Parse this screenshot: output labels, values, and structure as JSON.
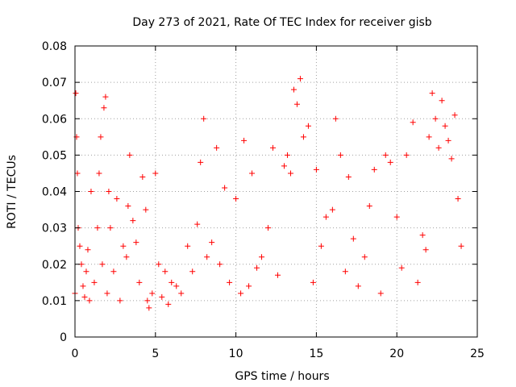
{
  "chart_data": {
    "type": "scatter",
    "title": "Day 273 of 2021, Rate Of TEC Index for receiver gisb",
    "xlabel": "GPS time / hours",
    "ylabel": "ROTI / TECUs",
    "xlim": [
      0,
      25
    ],
    "ylim": [
      0,
      0.08
    ],
    "x_ticks": [
      0,
      5,
      10,
      15,
      20,
      25
    ],
    "x_tick_labels": [
      "0",
      "5",
      "10",
      "15",
      "20",
      "25"
    ],
    "y_ticks": [
      0,
      0.01,
      0.02,
      0.03,
      0.04,
      0.05,
      0.06,
      0.07,
      0.08
    ],
    "y_tick_labels": [
      "0",
      "0.01",
      "0.02",
      "0.03",
      "0.04",
      "0.05",
      "0.06",
      "0.07",
      "0.08"
    ],
    "grid": true,
    "marker": "plus",
    "marker_color": "#ff0000",
    "series": [
      {
        "x": [
          0.0,
          0.05,
          0.1,
          0.15,
          0.2,
          0.3,
          0.4,
          0.5,
          0.6,
          0.7,
          0.8,
          0.9,
          1.0,
          1.2,
          1.4,
          1.5,
          1.6,
          1.7,
          1.8,
          1.9,
          2.0,
          2.1,
          2.2,
          2.4,
          2.6,
          2.8,
          3.0,
          3.2,
          3.3,
          3.4,
          3.6,
          3.8,
          4.0,
          4.2,
          4.4,
          4.5,
          4.6,
          4.8,
          5.0,
          5.2,
          5.4,
          5.6,
          5.8,
          6.0,
          6.3,
          6.6,
          7.0,
          7.3,
          7.6,
          7.8,
          8.0,
          8.2,
          8.5,
          8.8,
          9.0,
          9.3,
          9.6,
          10.0,
          10.3,
          10.5,
          10.8,
          11.0,
          11.3,
          11.6,
          12.0,
          12.3,
          12.6,
          13.0,
          13.2,
          13.4,
          13.6,
          13.8,
          14.0,
          14.2,
          14.5,
          14.8,
          15.0,
          15.3,
          15.6,
          16.0,
          16.2,
          16.5,
          16.8,
          17.0,
          17.3,
          17.6,
          18.0,
          18.3,
          18.6,
          19.0,
          19.3,
          19.6,
          20.0,
          20.3,
          20.6,
          21.0,
          21.3,
          21.6,
          21.8,
          22.0,
          22.2,
          22.4,
          22.6,
          22.8,
          23.0,
          23.2,
          23.4,
          23.6,
          23.8,
          24.0
        ],
        "y": [
          0.012,
          0.067,
          0.055,
          0.045,
          0.03,
          0.025,
          0.02,
          0.014,
          0.011,
          0.018,
          0.024,
          0.01,
          0.04,
          0.015,
          0.03,
          0.045,
          0.055,
          0.02,
          0.063,
          0.066,
          0.012,
          0.04,
          0.03,
          0.018,
          0.038,
          0.01,
          0.025,
          0.022,
          0.036,
          0.05,
          0.032,
          0.026,
          0.015,
          0.044,
          0.035,
          0.01,
          0.008,
          0.012,
          0.045,
          0.02,
          0.011,
          0.018,
          0.009,
          0.015,
          0.014,
          0.012,
          0.025,
          0.018,
          0.031,
          0.048,
          0.06,
          0.022,
          0.026,
          0.052,
          0.02,
          0.041,
          0.015,
          0.038,
          0.012,
          0.054,
          0.014,
          0.045,
          0.019,
          0.022,
          0.03,
          0.052,
          0.017,
          0.047,
          0.05,
          0.045,
          0.068,
          0.064,
          0.071,
          0.055,
          0.058,
          0.015,
          0.046,
          0.025,
          0.033,
          0.035,
          0.06,
          0.05,
          0.018,
          0.044,
          0.027,
          0.014,
          0.022,
          0.036,
          0.046,
          0.012,
          0.05,
          0.048,
          0.033,
          0.019,
          0.05,
          0.059,
          0.015,
          0.028,
          0.024,
          0.055,
          0.067,
          0.06,
          0.052,
          0.065,
          0.058,
          0.054,
          0.049,
          0.061,
          0.038,
          0.025
        ]
      }
    ]
  }
}
